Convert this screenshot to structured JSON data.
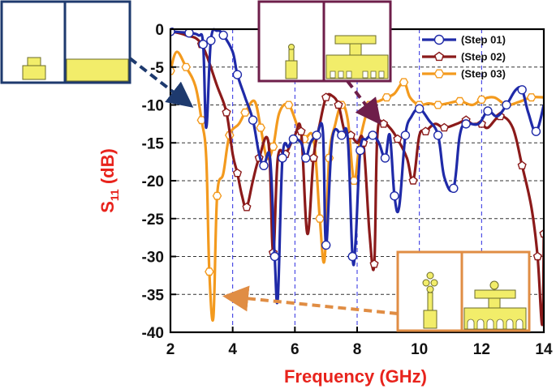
{
  "chart_data": {
    "type": "line",
    "xlabel": "Frequency (GHz)",
    "ylabel_main": "S",
    "ylabel_sub": "11",
    "ylabel_unit": " (dB)",
    "xlim": [
      2,
      14
    ],
    "ylim": [
      -40,
      0
    ],
    "xticks": [
      "2",
      "4",
      "6",
      "8",
      "10",
      "12",
      "14"
    ],
    "yticks": [
      "0",
      "-5",
      "-10",
      "-15",
      "-20",
      "-25",
      "-30",
      "-35",
      "-40"
    ],
    "grid": "dashed",
    "legend_position": "top-right",
    "series": [
      {
        "name": "(Step 01)",
        "color": "#1f2aa8",
        "marker": "circle",
        "points": [
          [
            2,
            -0.3
          ],
          [
            2.3,
            -0.4
          ],
          [
            2.6,
            -0.5
          ],
          [
            2.9,
            -0.8
          ],
          [
            3.05,
            -2
          ],
          [
            3.15,
            -13
          ],
          [
            3.3,
            -1.5
          ],
          [
            3.5,
            -0.2
          ],
          [
            3.7,
            -0.8
          ],
          [
            4.0,
            -3
          ],
          [
            4.15,
            -6
          ],
          [
            4.4,
            -9
          ],
          [
            4.65,
            -12
          ],
          [
            4.85,
            -16.5
          ],
          [
            5.0,
            -18
          ],
          [
            5.2,
            -17
          ],
          [
            5.35,
            -30
          ],
          [
            5.45,
            -35.5
          ],
          [
            5.6,
            -17
          ],
          [
            5.8,
            -15.5
          ],
          [
            5.95,
            -14.5
          ],
          [
            6.2,
            -15
          ],
          [
            6.35,
            -17
          ],
          [
            6.5,
            -15
          ],
          [
            6.7,
            -14
          ],
          [
            6.9,
            -13.5
          ],
          [
            7.0,
            -28.5
          ],
          [
            7.2,
            -14.5
          ],
          [
            7.5,
            -14
          ],
          [
            7.7,
            -14.5
          ],
          [
            7.85,
            -30
          ],
          [
            7.95,
            -28
          ],
          [
            8.1,
            -16
          ],
          [
            8.3,
            -14.5
          ],
          [
            8.5,
            -14
          ],
          [
            8.7,
            -15
          ],
          [
            8.9,
            -17
          ],
          [
            9.05,
            -14
          ],
          [
            9.2,
            -22
          ],
          [
            9.35,
            -23.5
          ],
          [
            9.55,
            -14
          ],
          [
            9.75,
            -11.5
          ],
          [
            10.0,
            -10.5
          ],
          [
            10.3,
            -12
          ],
          [
            10.6,
            -14
          ],
          [
            10.8,
            -19.5
          ],
          [
            11.1,
            -21
          ],
          [
            11.3,
            -14
          ],
          [
            11.5,
            -12.5
          ],
          [
            11.9,
            -12.5
          ],
          [
            12.2,
            -10.8
          ],
          [
            12.5,
            -11.5
          ],
          [
            12.8,
            -10
          ],
          [
            13.1,
            -8
          ],
          [
            13.3,
            -8
          ],
          [
            13.5,
            -11
          ],
          [
            13.75,
            -13.5
          ],
          [
            14.0,
            -10
          ]
        ]
      },
      {
        "name": "(Step 02)",
        "color": "#8b1a1a",
        "marker": "pentagon",
        "points": [
          [
            2,
            -0.3
          ],
          [
            2.5,
            -0.8
          ],
          [
            3.0,
            -2
          ],
          [
            3.5,
            -7.5
          ],
          [
            3.8,
            -11
          ],
          [
            4.0,
            -16.5
          ],
          [
            4.15,
            -19
          ],
          [
            4.3,
            -22
          ],
          [
            4.45,
            -23.5
          ],
          [
            4.65,
            -20
          ],
          [
            4.85,
            -17
          ],
          [
            5.15,
            -15
          ],
          [
            5.3,
            -29.5
          ],
          [
            5.45,
            -17
          ],
          [
            5.7,
            -16.5
          ],
          [
            6.0,
            -14
          ],
          [
            6.2,
            -13.5
          ],
          [
            6.4,
            -27
          ],
          [
            6.6,
            -17
          ],
          [
            6.8,
            -12.5
          ],
          [
            7.0,
            -9
          ],
          [
            7.2,
            -8.8
          ],
          [
            7.4,
            -10
          ],
          [
            7.6,
            -13.5
          ],
          [
            7.8,
            -14
          ],
          [
            8.0,
            -15
          ],
          [
            8.2,
            -15
          ],
          [
            8.4,
            -27
          ],
          [
            8.55,
            -31
          ],
          [
            8.65,
            -14
          ],
          [
            8.85,
            -12.5
          ],
          [
            9.05,
            -13
          ],
          [
            9.3,
            -14.5
          ],
          [
            9.6,
            -17
          ],
          [
            9.8,
            -20
          ],
          [
            10.0,
            -14
          ],
          [
            10.2,
            -13.5
          ],
          [
            10.5,
            -12.5
          ],
          [
            10.8,
            -13
          ],
          [
            11.2,
            -12.5
          ],
          [
            11.5,
            -12
          ],
          [
            11.7,
            -12.5
          ],
          [
            12.0,
            -12.5
          ],
          [
            12.2,
            -13
          ],
          [
            12.6,
            -11.5
          ],
          [
            13.0,
            -13
          ],
          [
            13.3,
            -18
          ],
          [
            13.6,
            -23.5
          ],
          [
            13.8,
            -30
          ],
          [
            13.95,
            -39
          ],
          [
            14.0,
            -27
          ]
        ]
      },
      {
        "name": "(Step 03)",
        "color": "#f39a1e",
        "marker": "hexagon",
        "points": [
          [
            2,
            -5.5
          ],
          [
            2.2,
            -3
          ],
          [
            2.5,
            -5
          ],
          [
            2.8,
            -7.5
          ],
          [
            3.0,
            -12
          ],
          [
            3.15,
            -17
          ],
          [
            3.25,
            -32
          ],
          [
            3.38,
            -38
          ],
          [
            3.5,
            -22
          ],
          [
            3.7,
            -19
          ],
          [
            3.9,
            -14
          ],
          [
            4.2,
            -12.5
          ],
          [
            4.4,
            -11
          ],
          [
            4.7,
            -9.5
          ],
          [
            4.9,
            -13
          ],
          [
            5.1,
            -17
          ],
          [
            5.3,
            -15.5
          ],
          [
            5.5,
            -11
          ],
          [
            5.8,
            -10
          ],
          [
            6.1,
            -13
          ],
          [
            6.3,
            -14.5
          ],
          [
            6.6,
            -14.5
          ],
          [
            6.8,
            -25
          ],
          [
            6.95,
            -30.5
          ],
          [
            7.1,
            -17
          ],
          [
            7.3,
            -12.5
          ],
          [
            7.5,
            -10
          ],
          [
            7.7,
            -12
          ],
          [
            7.9,
            -20
          ],
          [
            8.1,
            -14.5
          ],
          [
            8.4,
            -10
          ],
          [
            8.7,
            -9.5
          ],
          [
            8.95,
            -9
          ],
          [
            9.2,
            -8.5
          ],
          [
            9.5,
            -7
          ],
          [
            9.7,
            -9
          ],
          [
            10.0,
            -10
          ],
          [
            10.3,
            -9.8
          ],
          [
            10.6,
            -10
          ],
          [
            10.9,
            -9.8
          ],
          [
            11.3,
            -9.5
          ],
          [
            11.7,
            -10
          ],
          [
            12.0,
            -9.3
          ],
          [
            12.4,
            -9
          ],
          [
            12.8,
            -10
          ],
          [
            13.2,
            -9.6
          ],
          [
            13.6,
            -9
          ],
          [
            14.0,
            -9
          ]
        ]
      }
    ]
  }
}
